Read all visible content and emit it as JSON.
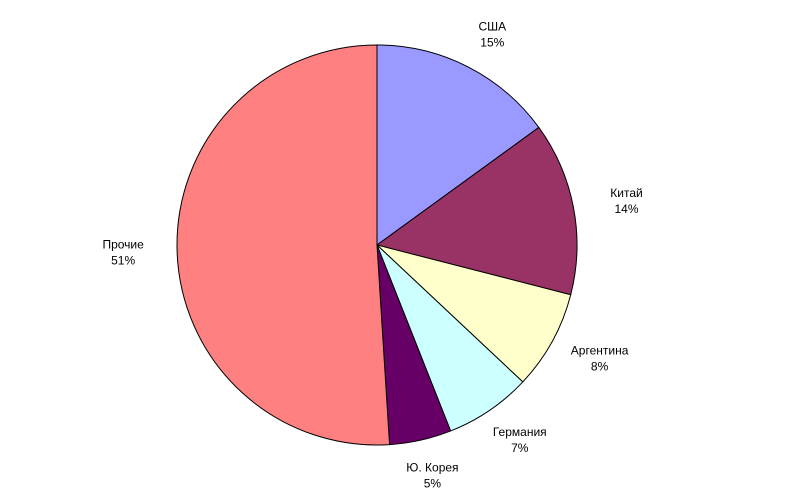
{
  "chart_data": {
    "type": "pie",
    "categories": [
      "США",
      "Китай",
      "Аргентина",
      "Германия",
      "Ю. Корея",
      "Прочие"
    ],
    "values": [
      15,
      14,
      8,
      7,
      5,
      51
    ],
    "value_labels": [
      "15%",
      "14%",
      "8%",
      "7%",
      "5%",
      "51%"
    ],
    "colors": [
      "#9999ff",
      "#993366",
      "#ffffcc",
      "#ccffff",
      "#660066",
      "#ff8080"
    ]
  }
}
